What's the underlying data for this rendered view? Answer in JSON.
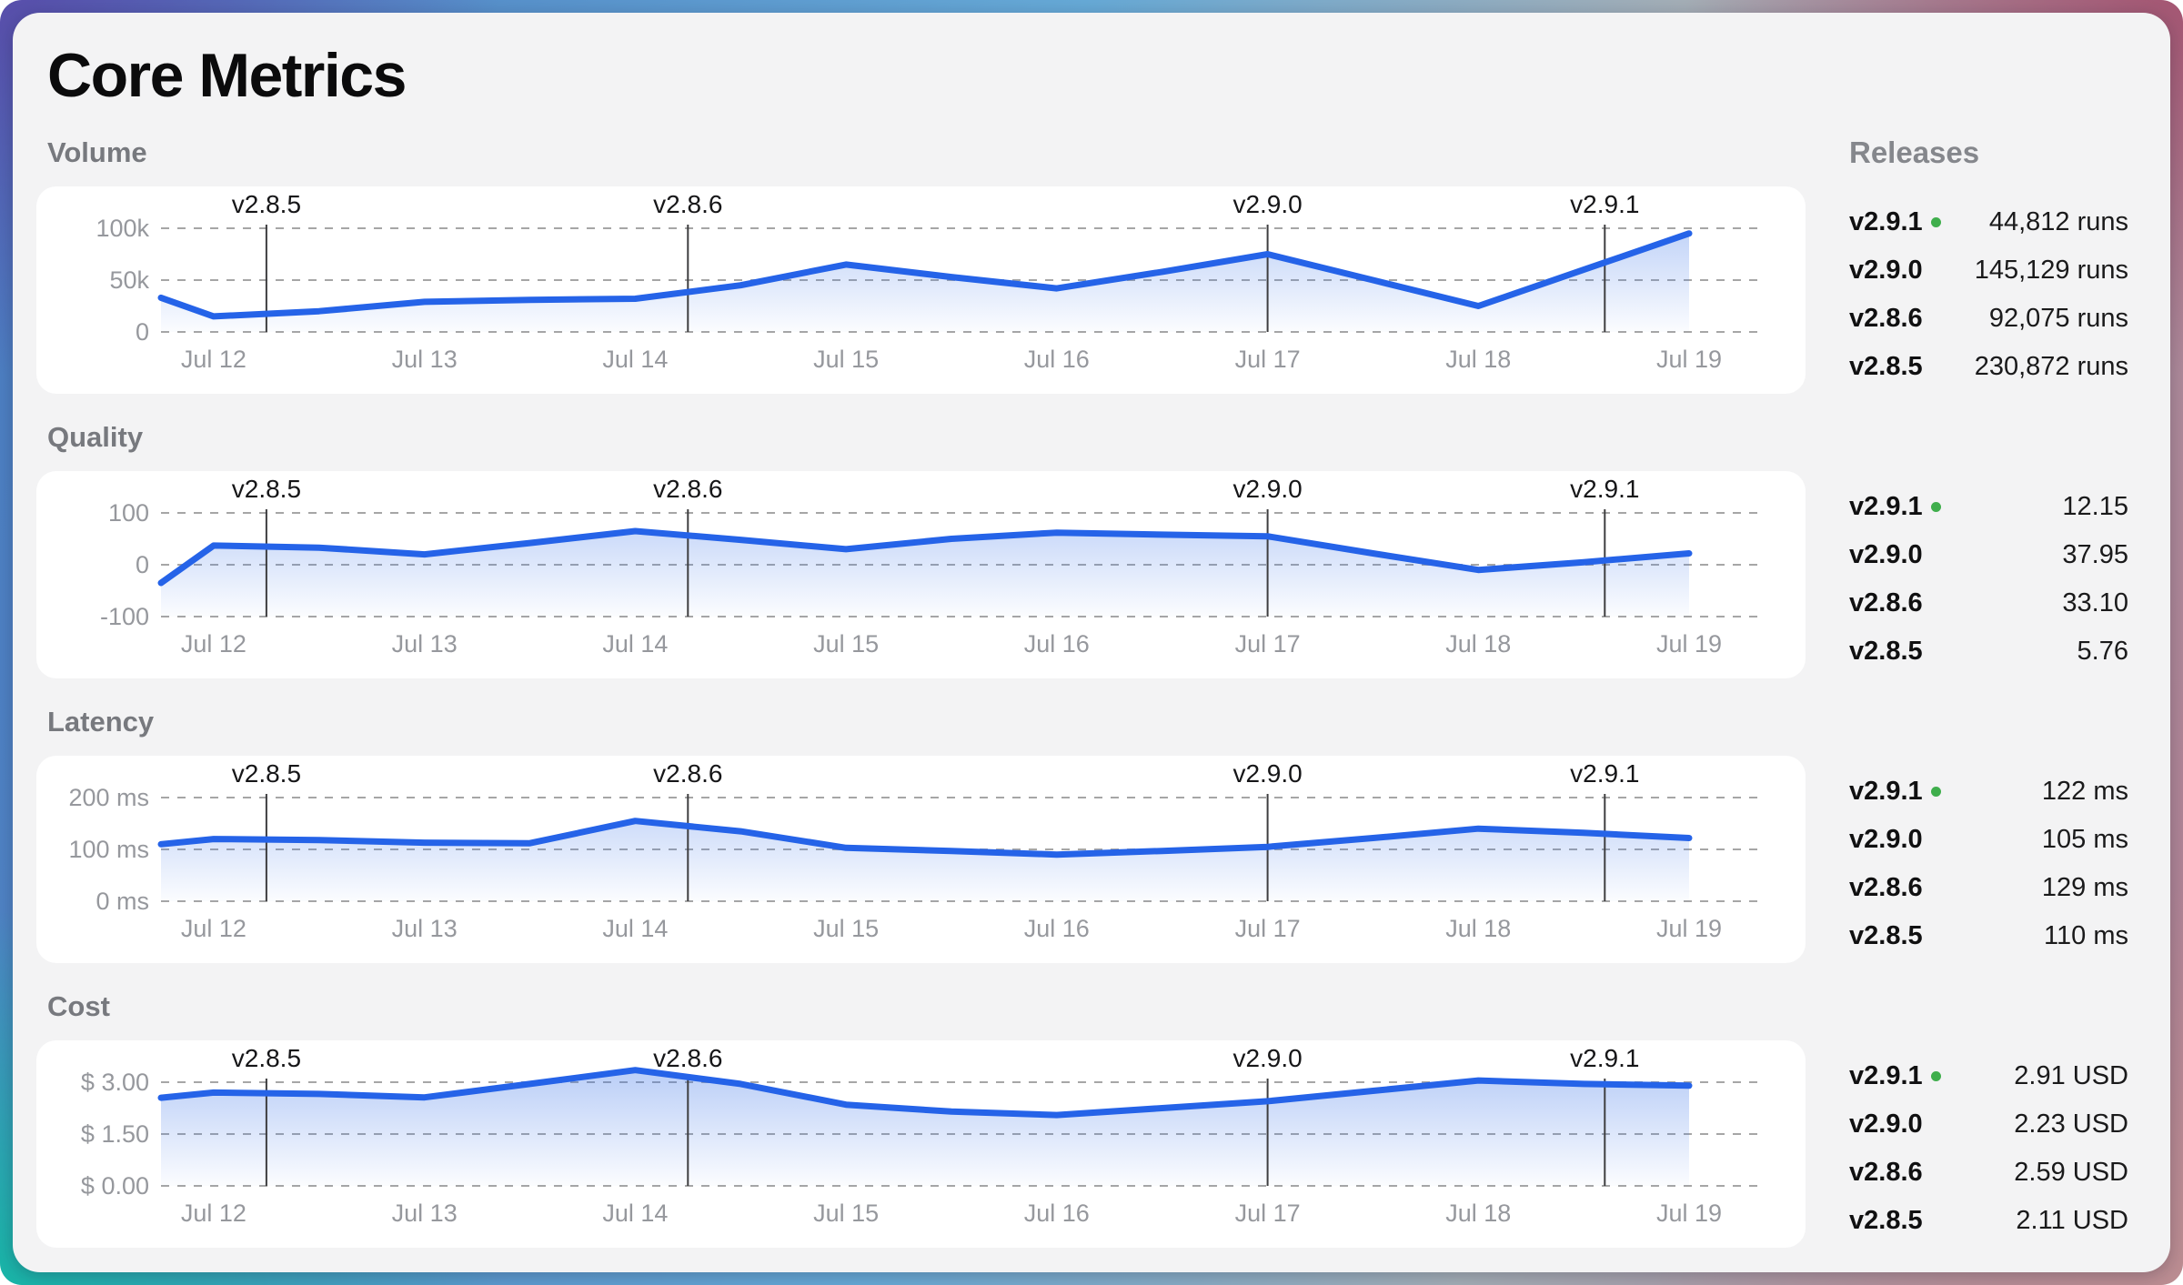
{
  "title": "Core Metrics",
  "releases_panel": {
    "heading": "Releases"
  },
  "colors": {
    "accent_blue": "#2563e8",
    "current_release_dot": "#3fae4c",
    "frame_top_left": "#5a49a8",
    "frame_top_right": "#a3506e",
    "frame_bottom_left": "#12bba4",
    "frame_bottom_right": "#bd8f92"
  },
  "release_markers": [
    {
      "label": "v2.8.5",
      "day": 0.25
    },
    {
      "label": "v2.8.6",
      "day": 2.25
    },
    {
      "label": "v2.9.0",
      "day": 5.0
    },
    {
      "label": "v2.9.1",
      "day": 6.6
    }
  ],
  "chart_data": [
    {
      "type": "area",
      "title": "Volume",
      "x_tick_labels": [
        "Jul 12",
        "Jul 13",
        "Jul 14",
        "Jul 15",
        "Jul 16",
        "Jul 17",
        "Jul 18",
        "Jul 19"
      ],
      "x_days": [
        -0.25,
        0,
        0.5,
        1,
        1.5,
        2,
        2.5,
        3,
        3.5,
        4,
        4.5,
        5,
        5.5,
        6,
        6.5,
        7
      ],
      "values": [
        33000,
        15000,
        20000,
        29000,
        31000,
        32000,
        45000,
        65000,
        53000,
        42000,
        58000,
        75000,
        50000,
        25000,
        60000,
        95000
      ],
      "ylim": [
        0,
        100000
      ],
      "y_gridlines": [
        {
          "label": "100k",
          "value": 100000
        },
        {
          "label": "50k",
          "value": 50000
        },
        {
          "label": "0",
          "value": 0
        }
      ],
      "releases": [
        {
          "version": "v2.9.1",
          "current": true,
          "value": "44,812 runs"
        },
        {
          "version": "v2.9.0",
          "current": false,
          "value": "145,129 runs"
        },
        {
          "version": "v2.8.6",
          "current": false,
          "value": "92,075 runs"
        },
        {
          "version": "v2.8.5",
          "current": false,
          "value": "230,872 runs"
        }
      ]
    },
    {
      "type": "area",
      "title": "Quality",
      "x_tick_labels": [
        "Jul 12",
        "Jul 13",
        "Jul 14",
        "Jul 15",
        "Jul 16",
        "Jul 17",
        "Jul 18",
        "Jul 19"
      ],
      "x_days": [
        -0.25,
        0,
        0.5,
        1,
        1.5,
        2,
        2.5,
        3,
        3.5,
        4,
        4.5,
        5,
        5.5,
        6,
        6.5,
        7
      ],
      "values": [
        -35,
        37,
        33,
        20,
        42,
        65,
        48,
        30,
        50,
        62,
        58,
        55,
        22,
        -10,
        5,
        22
      ],
      "ylim": [
        -100,
        100
      ],
      "y_gridlines": [
        {
          "label": "100",
          "value": 100
        },
        {
          "label": "0",
          "value": 0
        },
        {
          "label": "-100",
          "value": -100
        }
      ],
      "releases": [
        {
          "version": "v2.9.1",
          "current": true,
          "value": "12.15"
        },
        {
          "version": "v2.9.0",
          "current": false,
          "value": "37.95"
        },
        {
          "version": "v2.8.6",
          "current": false,
          "value": "33.10"
        },
        {
          "version": "v2.8.5",
          "current": false,
          "value": "5.76"
        }
      ]
    },
    {
      "type": "area",
      "title": "Latency",
      "x_tick_labels": [
        "Jul 12",
        "Jul 13",
        "Jul 14",
        "Jul 15",
        "Jul 16",
        "Jul 17",
        "Jul 18",
        "Jul 19"
      ],
      "x_days": [
        -0.25,
        0,
        0.5,
        1,
        1.5,
        2,
        2.5,
        3,
        3.5,
        4,
        4.5,
        5,
        5.5,
        6,
        6.5,
        7
      ],
      "values": [
        110,
        120,
        118,
        113,
        112,
        155,
        135,
        103,
        97,
        90,
        97,
        105,
        122,
        140,
        132,
        122
      ],
      "ylim": [
        0,
        200
      ],
      "y_gridlines": [
        {
          "label": "200 ms",
          "value": 200
        },
        {
          "label": "100 ms",
          "value": 100
        },
        {
          "label": "0 ms",
          "value": 0
        }
      ],
      "releases": [
        {
          "version": "v2.9.1",
          "current": true,
          "value": "122 ms"
        },
        {
          "version": "v2.9.0",
          "current": false,
          "value": "105 ms"
        },
        {
          "version": "v2.8.6",
          "current": false,
          "value": "129 ms"
        },
        {
          "version": "v2.8.5",
          "current": false,
          "value": "110 ms"
        }
      ]
    },
    {
      "type": "area",
      "title": "Cost",
      "x_tick_labels": [
        "Jul 12",
        "Jul 13",
        "Jul 14",
        "Jul 15",
        "Jul 16",
        "Jul 17",
        "Jul 18",
        "Jul 19"
      ],
      "x_days": [
        -0.25,
        0,
        0.5,
        1,
        1.5,
        2,
        2.5,
        3,
        3.5,
        4,
        4.5,
        5,
        5.5,
        6,
        6.5,
        7
      ],
      "values": [
        2.55,
        2.7,
        2.66,
        2.56,
        2.95,
        3.35,
        2.95,
        2.35,
        2.15,
        2.05,
        2.25,
        2.45,
        2.75,
        3.05,
        2.95,
        2.9
      ],
      "ylim": [
        0,
        3
      ],
      "y_gridlines": [
        {
          "label": "$ 3.00",
          "value": 3.0
        },
        {
          "label": "$ 1.50",
          "value": 1.5
        },
        {
          "label": "$ 0.00",
          "value": 0.0
        }
      ],
      "releases": [
        {
          "version": "v2.9.1",
          "current": true,
          "value": "2.91 USD"
        },
        {
          "version": "v2.9.0",
          "current": false,
          "value": "2.23 USD"
        },
        {
          "version": "v2.8.6",
          "current": false,
          "value": "2.59 USD"
        },
        {
          "version": "v2.8.5",
          "current": false,
          "value": "2.11 USD"
        }
      ]
    }
  ]
}
